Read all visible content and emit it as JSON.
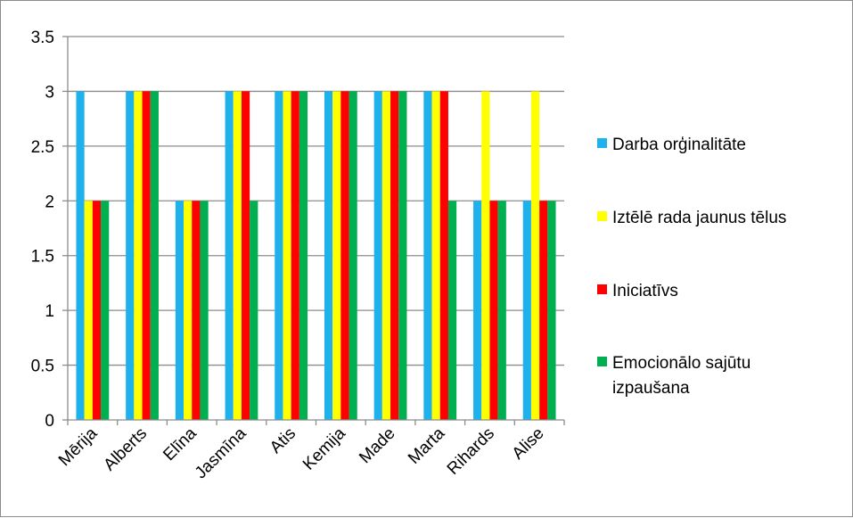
{
  "chart_data": {
    "type": "bar",
    "title": "",
    "xlabel": "",
    "ylabel": "",
    "ylim": [
      0,
      3.5
    ],
    "y_ticks": [
      "0",
      "0.5",
      "1",
      "1.5",
      "2",
      "2.5",
      "3",
      "3.5"
    ],
    "grid": "horizontal",
    "legend_position": "right",
    "categories": [
      "Mērija",
      "Alberts",
      "Elīna",
      "Jasmīna",
      "Atis",
      "Kemija",
      "Made",
      "Marta",
      "Rihards",
      "Alise"
    ],
    "series": [
      {
        "name": "Darba orģinalitāte",
        "color": "#1fb1eb",
        "values": [
          3,
          3,
          2,
          3,
          3,
          3,
          3,
          3,
          2,
          2
        ]
      },
      {
        "name": "Iztēlē rada jaunus tēlus",
        "color": "#ffff00",
        "values": [
          2,
          3,
          2,
          3,
          3,
          3,
          3,
          3,
          3,
          3
        ]
      },
      {
        "name": "Iniciatīvs",
        "color": "#ff0000",
        "values": [
          2,
          3,
          2,
          3,
          3,
          3,
          3,
          3,
          2,
          2
        ]
      },
      {
        "name": "Emocionālo sajūtu izpaušana",
        "legend_lines": [
          "Emocionālo sajūtu",
          "izpaušana"
        ],
        "color": "#00b050",
        "values": [
          2,
          3,
          2,
          2,
          3,
          3,
          3,
          2,
          2,
          2
        ]
      }
    ]
  }
}
